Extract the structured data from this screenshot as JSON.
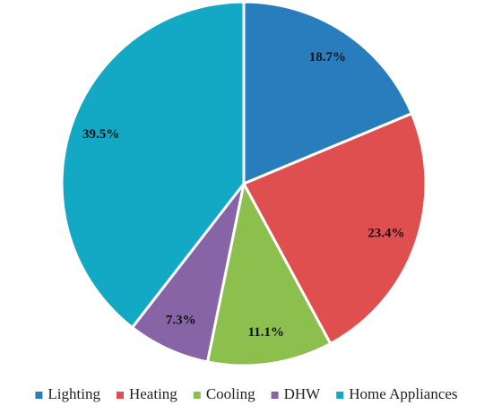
{
  "chart_data": {
    "type": "pie",
    "categories": [
      "Lighting",
      "Heating",
      "Cooling",
      "DHW",
      "Home Appliances"
    ],
    "values": [
      18.7,
      23.4,
      11.1,
      7.3,
      39.5
    ],
    "value_labels": [
      "18.7%",
      "23.4%",
      "11.1%",
      "7.3%",
      "39.5%"
    ],
    "colors": [
      "#2a7dbd",
      "#df4f4f",
      "#8cbf4e",
      "#8764a6",
      "#13a8c4"
    ],
    "legend": "bottom"
  }
}
